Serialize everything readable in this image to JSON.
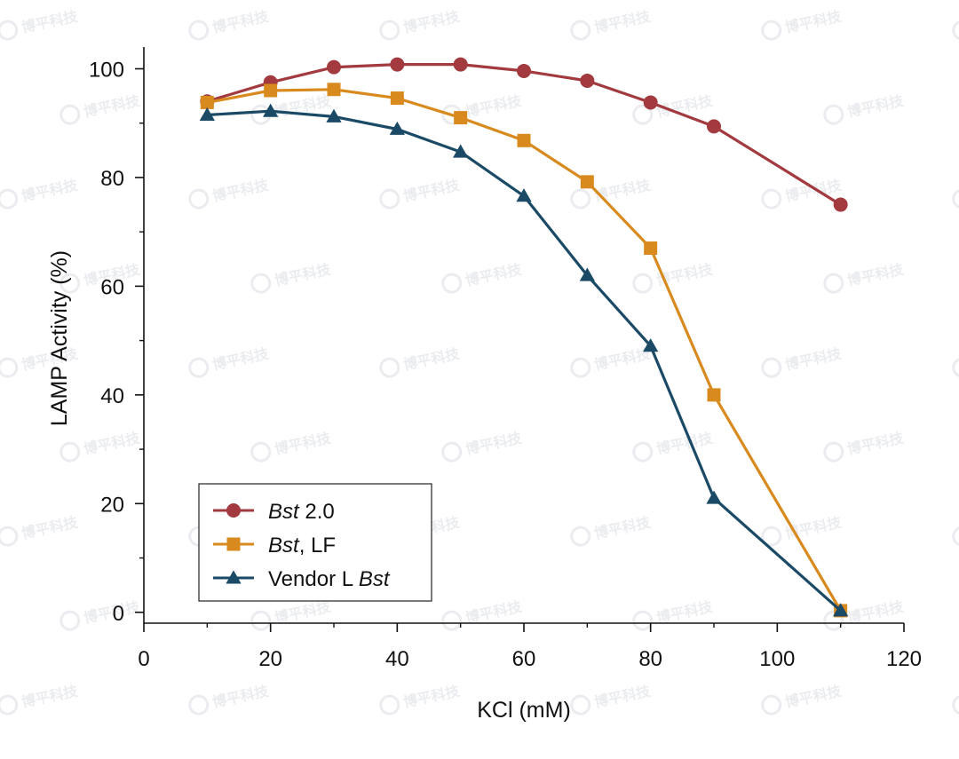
{
  "chart_data": {
    "type": "line",
    "xlabel": "KCl (mM)",
    "ylabel": "LAMP Activity (%)",
    "xlim": [
      0,
      120
    ],
    "ylim": [
      -2,
      104
    ],
    "x_ticks": [
      0,
      20,
      40,
      60,
      80,
      100,
      120
    ],
    "y_ticks": [
      0,
      20,
      40,
      60,
      80,
      100
    ],
    "grid": false,
    "legend_position": "bottom-left",
    "series": [
      {
        "name": "Bst 2.0",
        "name_parts": [
          {
            "text": "Bst",
            "italic": true
          },
          {
            "text": " 2.0",
            "italic": false
          }
        ],
        "marker": "circle",
        "color": "#a23a3f",
        "x": [
          10,
          20,
          30,
          40,
          50,
          60,
          70,
          80,
          90,
          110
        ],
        "y": [
          94,
          97.5,
          100.3,
          100.8,
          100.8,
          99.6,
          97.8,
          93.8,
          89.4,
          75
        ]
      },
      {
        "name": "Bst, LF",
        "name_parts": [
          {
            "text": "Bst",
            "italic": true
          },
          {
            "text": ", LF",
            "italic": false
          }
        ],
        "marker": "square",
        "color": "#d88a1e",
        "x": [
          10,
          20,
          30,
          40,
          50,
          60,
          70,
          80,
          90,
          110
        ],
        "y": [
          93.8,
          96,
          96.2,
          94.6,
          91,
          86.8,
          79.2,
          67,
          40,
          0.3
        ]
      },
      {
        "name": "Vendor L Bst",
        "name_parts": [
          {
            "text": "Vendor L ",
            "italic": false
          },
          {
            "text": "Bst",
            "italic": true
          }
        ],
        "marker": "triangle",
        "color": "#1a4a66",
        "x": [
          10,
          20,
          30,
          40,
          50,
          60,
          70,
          80,
          90,
          110
        ],
        "y": [
          91.5,
          92.2,
          91.2,
          88.9,
          84.7,
          76.6,
          62,
          49,
          21,
          0.3
        ]
      }
    ]
  },
  "watermark": "博平科技"
}
